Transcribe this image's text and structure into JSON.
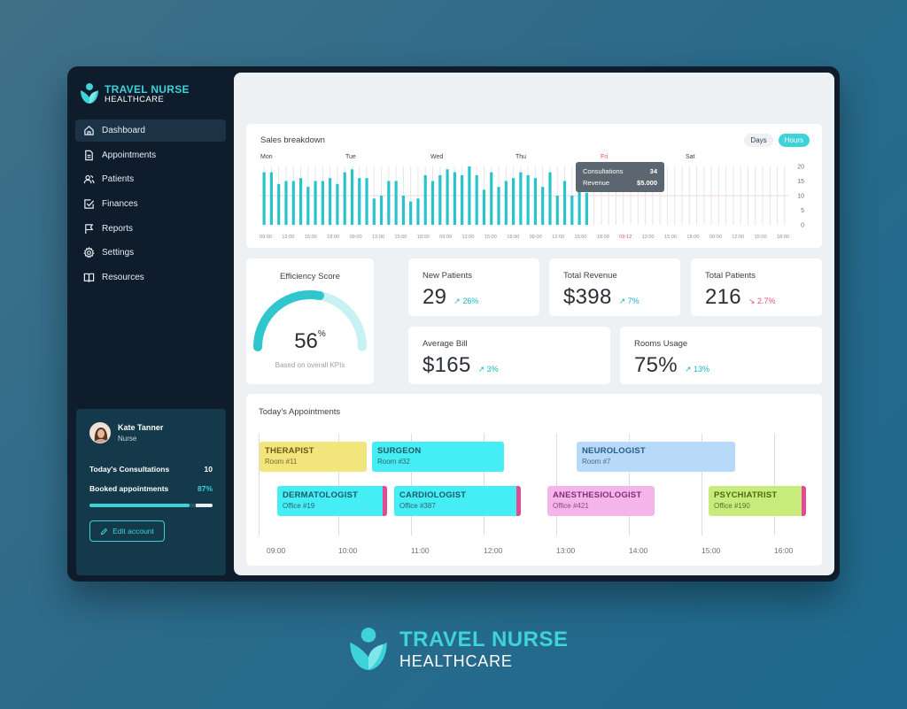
{
  "brand": {
    "name": "TRAVEL NURSE",
    "sub": "HEALTHCARE"
  },
  "colors": {
    "accent": "#3dd3d8",
    "sidebar": "#0f1c2b",
    "positive": "#19b8c2",
    "negative": "#e0527e"
  },
  "nav": {
    "items": [
      {
        "label": "Dashboard",
        "icon": "home-icon",
        "active": true
      },
      {
        "label": "Appointments",
        "icon": "document-icon"
      },
      {
        "label": "Patients",
        "icon": "users-icon"
      },
      {
        "label": "Finances",
        "icon": "checkbox-icon"
      },
      {
        "label": "Reports",
        "icon": "flag-icon"
      },
      {
        "label": "Settings",
        "icon": "gear-icon"
      },
      {
        "label": "Resources",
        "icon": "book-icon"
      }
    ]
  },
  "profile": {
    "name": "Kate Tanner",
    "role": "Nurse",
    "consultations_label": "Today's Consultations",
    "consultations_value": "10",
    "booked_label": "Booked appointments",
    "booked_value": "87%",
    "booked_fraction": 0.87,
    "edit_label": "Edit account"
  },
  "sales": {
    "title": "Sales breakdown",
    "toggle_days": "Days",
    "toggle_hours": "Hours",
    "day_labels": [
      "Mon",
      "Tue",
      "Wed",
      "Thu",
      "Fri",
      "Sat"
    ],
    "tooltip": {
      "label1": "Consultations",
      "value1": "34",
      "label2": "Revenue",
      "value2": "$5.000"
    }
  },
  "chart_data": {
    "type": "bar",
    "title": "Sales breakdown",
    "y_ticks": [
      "20",
      "15",
      "10",
      "5",
      "0"
    ],
    "ylim": [
      0,
      20
    ],
    "reference_line": 10,
    "x_tick_labels": [
      "09:00",
      "12:00",
      "15:00",
      "18:00",
      "09:00",
      "12:00",
      "15:00",
      "18:00",
      "09:00",
      "12:00",
      "15:00",
      "18:00",
      "09:00",
      "12:00",
      "15:00",
      "18:00",
      "09:12",
      "12:00",
      "15:00",
      "18:00",
      "09:00",
      "12:00",
      "15:00",
      "18:00"
    ],
    "highlight_tick_index": 16,
    "values": [
      18,
      18,
      14,
      15,
      15,
      16,
      13,
      15,
      15,
      16,
      14,
      18,
      19,
      16,
      16,
      9,
      10,
      15,
      15,
      10,
      8,
      9,
      17,
      15,
      17,
      19,
      18,
      17,
      20,
      17,
      12,
      18,
      13,
      15,
      16,
      18,
      17,
      16,
      13,
      18,
      10,
      15,
      10,
      12,
      11,
      null,
      null,
      null,
      null,
      null,
      null,
      null,
      null,
      null,
      null,
      null,
      null,
      null,
      null,
      null,
      null,
      null,
      null,
      null,
      null,
      null,
      null,
      null,
      null,
      null,
      null,
      null
    ]
  },
  "kpis": {
    "efficiency": {
      "title": "Efficiency Score",
      "value": "56",
      "unit": "%",
      "fraction": 0.56,
      "caption": "Based on overall KPIs"
    },
    "new_patients": {
      "title": "New Patients",
      "value": "29",
      "delta": "↗ 26%"
    },
    "total_revenue": {
      "title": "Total Revenue",
      "value": "$398",
      "delta": "↗ 7%"
    },
    "total_patients": {
      "title": "Total Patients",
      "value": "216",
      "delta": "↘ 2.7%"
    },
    "average_bill": {
      "title": "Average Bill",
      "value": "$165",
      "delta": "↗ 3%"
    },
    "rooms_usage": {
      "title": "Rooms Usage",
      "value": "75%",
      "delta": "↗ 13%"
    }
  },
  "appointments": {
    "title": "Today's Appointments",
    "hours": [
      "09:00",
      "10:00",
      "11:00",
      "12:00",
      "13:00",
      "14:00",
      "15:00",
      "16:00"
    ],
    "items": [
      {
        "name": "THERAPIST",
        "room": "Room #11"
      },
      {
        "name": "SURGEON",
        "room": "Room #32"
      },
      {
        "name": "NEUROLOGIST",
        "room": "Room #7"
      },
      {
        "name": "DERMATOLOGIST",
        "room": "Office #19"
      },
      {
        "name": "CARDIOLOGIST",
        "room": "Office #387"
      },
      {
        "name": "ANESTHESIOLOGIST",
        "room": "Office #421"
      },
      {
        "name": "PSYCHIATRIST",
        "room": "Office #190"
      }
    ]
  },
  "footer_logo": {
    "name": "TRAVEL NURSE",
    "sub": "HEALTHCARE"
  }
}
